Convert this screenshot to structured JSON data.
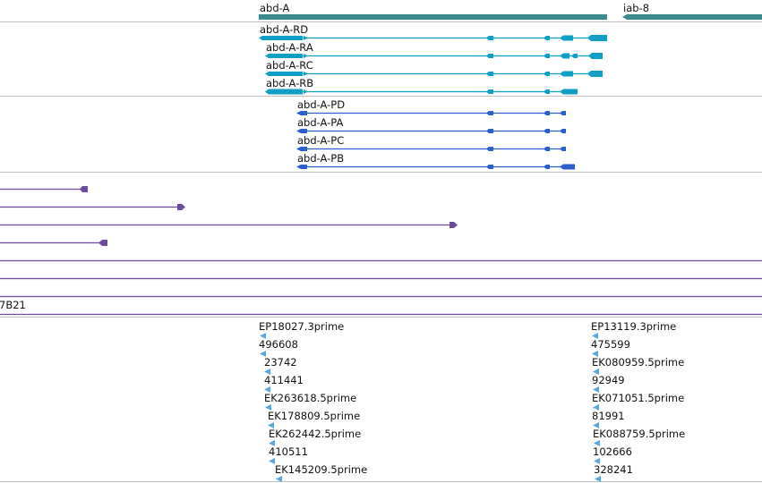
{
  "colors": {
    "gene": "#3a8a90",
    "transcript": "#0e9ec6",
    "protein": "#2a5fd0",
    "purple": "#6c4a9e",
    "est": "#5aa7dd",
    "divider": "#bfbfbf"
  },
  "genes": {
    "left": {
      "name": "abd-A"
    },
    "right": {
      "name": "iab-8"
    }
  },
  "transcripts": [
    {
      "name": "abd-A-RD"
    },
    {
      "name": "abd-A-RA"
    },
    {
      "name": "abd-A-RC"
    },
    {
      "name": "abd-A-RB"
    }
  ],
  "proteins": [
    {
      "name": "abd-A-PD"
    },
    {
      "name": "abd-A-PA"
    },
    {
      "name": "abd-A-PC"
    },
    {
      "name": "abd-A-PB"
    }
  ],
  "misc": {
    "partial_label": "7B21"
  },
  "ests_left": [
    {
      "name": "EP18027.3prime"
    },
    {
      "name": "496608"
    },
    {
      "name": "23742"
    },
    {
      "name": "411441"
    },
    {
      "name": "EK263618.5prime"
    },
    {
      "name": "EK178809.5prime"
    },
    {
      "name": "EK262442.5prime"
    },
    {
      "name": "410511"
    },
    {
      "name": "EK145209.5prime"
    }
  ],
  "ests_right": [
    {
      "name": "EP13119.3prime"
    },
    {
      "name": "475599"
    },
    {
      "name": "EK080959.5prime"
    },
    {
      "name": "92949"
    },
    {
      "name": "EK071051.5prime"
    },
    {
      "name": "81991"
    },
    {
      "name": "EK088759.5prime"
    },
    {
      "name": "102666"
    },
    {
      "name": "328241"
    }
  ]
}
